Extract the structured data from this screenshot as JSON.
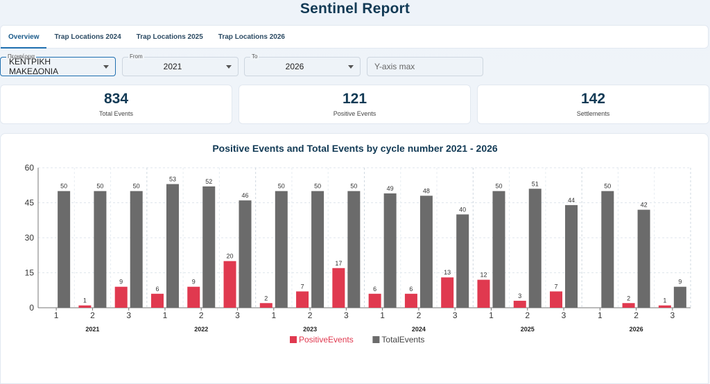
{
  "header": {
    "title": "Sentinel Report"
  },
  "tabs": [
    {
      "label": "Overview",
      "active": true
    },
    {
      "label": "Trap Locations 2024",
      "active": false
    },
    {
      "label": "Trap Locations 2025",
      "active": false
    },
    {
      "label": "Trap Locations 2026",
      "active": false
    }
  ],
  "filters": {
    "region": {
      "label": "Περιφέρεια",
      "value": "ΚΕΝΤΡΙΚΗ ΜΑΚΕΔΟΝΙΑ"
    },
    "from": {
      "label": "From",
      "value": "2021"
    },
    "to": {
      "label": "To",
      "value": "2026"
    },
    "ymax": {
      "placeholder": "Y-axis max"
    }
  },
  "summary": {
    "total_events": {
      "value": "834",
      "label": "Total Events"
    },
    "positive_events": {
      "value": "121",
      "label": "Positive Events"
    },
    "settlements": {
      "value": "142",
      "label": "Settlements"
    }
  },
  "colors": {
    "positive": "#e0394f",
    "total": "#6b6b6b",
    "accent": "#1f6fb0",
    "title": "#123a55"
  },
  "chart_data": {
    "type": "bar",
    "title": "Positive Events and Total Events by cycle number 2021 - 2026",
    "groups": [
      "2021",
      "2022",
      "2023",
      "2024",
      "2025",
      "2026"
    ],
    "categories": [
      "1",
      "2",
      "3",
      "1",
      "2",
      "3",
      "1",
      "2",
      "3",
      "1",
      "2",
      "3",
      "1",
      "2",
      "3",
      "1",
      "2",
      "3"
    ],
    "series": [
      {
        "name": "PositiveEvents",
        "color": "#e0394f",
        "values": [
          0,
          1,
          9,
          6,
          9,
          20,
          2,
          7,
          17,
          6,
          6,
          13,
          12,
          3,
          7,
          0,
          2,
          1
        ]
      },
      {
        "name": "TotalEvents",
        "color": "#6b6b6b",
        "values": [
          50,
          50,
          50,
          53,
          52,
          46,
          50,
          50,
          50,
          49,
          48,
          40,
          50,
          51,
          44,
          50,
          42,
          9
        ]
      }
    ],
    "ylim": [
      0,
      60
    ],
    "yticks": [
      0,
      15,
      30,
      45,
      60
    ],
    "grid": true,
    "legend": "bottom-center"
  }
}
